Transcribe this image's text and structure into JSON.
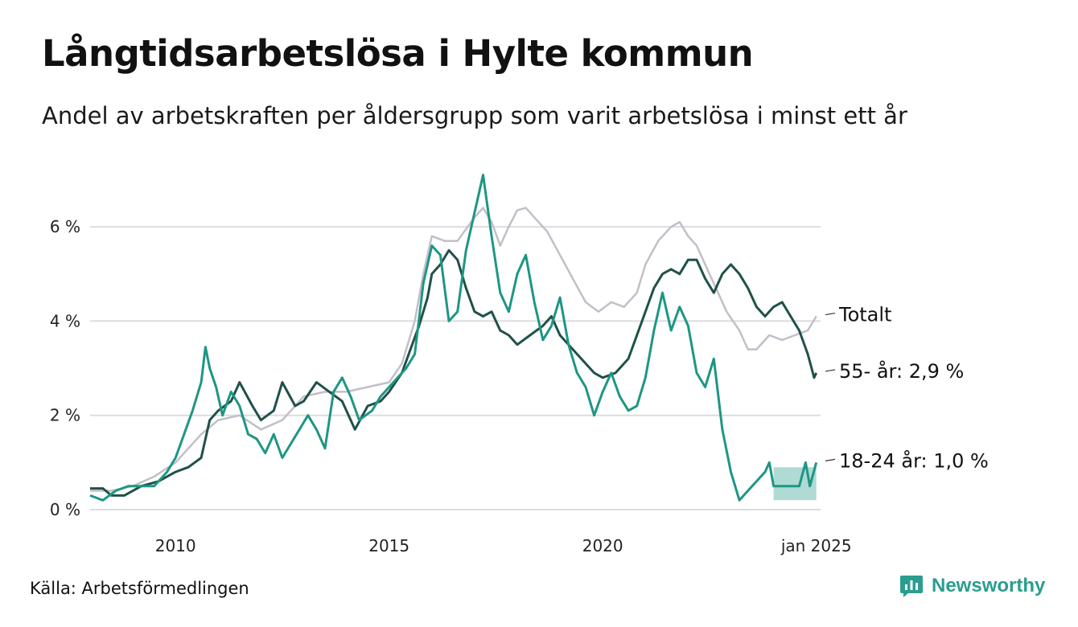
{
  "header": {
    "title": "Långtidsarbetslösa i Hylte kommun",
    "subtitle": "Andel av arbetskraften per åldersgrupp som varit arbetslösa i minst ett år"
  },
  "footer": {
    "source": "Källa: Arbetsförmedlingen",
    "brand": "Newsworthy",
    "brand_icon": "newsworthy-logo-icon"
  },
  "chart_data": {
    "type": "line",
    "title": "",
    "xlabel": "",
    "ylabel": "",
    "xlim": [
      2008.0,
      2025.1
    ],
    "ylim": [
      0,
      7.4
    ],
    "grid": true,
    "legend": "none (direct labels at line ends)",
    "y_ticks": [
      {
        "value": 0,
        "label": "0 %"
      },
      {
        "value": 2,
        "label": "2 %"
      },
      {
        "value": 4,
        "label": "4 %"
      },
      {
        "value": 6,
        "label": "6 %"
      }
    ],
    "x_ticks": [
      {
        "value": 2010,
        "label": "2010"
      },
      {
        "value": 2015,
        "label": "2015"
      },
      {
        "value": 2020,
        "label": "2020"
      },
      {
        "value": 2025,
        "label": "jan 2025"
      }
    ],
    "series": [
      {
        "name": "Totalt",
        "end_label": "Totalt",
        "color": "#c2bfc8",
        "points": [
          [
            2008.0,
            0.4
          ],
          [
            2008.5,
            0.4
          ],
          [
            2009.0,
            0.5
          ],
          [
            2009.5,
            0.7
          ],
          [
            2010.0,
            1.0
          ],
          [
            2010.3,
            1.3
          ],
          [
            2010.6,
            1.6
          ],
          [
            2011.0,
            1.9
          ],
          [
            2011.5,
            2.0
          ],
          [
            2012.0,
            1.7
          ],
          [
            2012.5,
            1.9
          ],
          [
            2013.0,
            2.4
          ],
          [
            2013.5,
            2.5
          ],
          [
            2014.0,
            2.5
          ],
          [
            2014.5,
            2.6
          ],
          [
            2015.0,
            2.7
          ],
          [
            2015.3,
            3.1
          ],
          [
            2015.6,
            4.0
          ],
          [
            2015.8,
            5.0
          ],
          [
            2016.0,
            5.8
          ],
          [
            2016.3,
            5.7
          ],
          [
            2016.6,
            5.7
          ],
          [
            2017.0,
            6.2
          ],
          [
            2017.2,
            6.4
          ],
          [
            2017.4,
            6.1
          ],
          [
            2017.6,
            5.6
          ],
          [
            2017.8,
            6.0
          ],
          [
            2018.0,
            6.35
          ],
          [
            2018.2,
            6.4
          ],
          [
            2018.4,
            6.2
          ],
          [
            2018.7,
            5.9
          ],
          [
            2019.0,
            5.4
          ],
          [
            2019.3,
            4.9
          ],
          [
            2019.6,
            4.4
          ],
          [
            2019.9,
            4.2
          ],
          [
            2020.2,
            4.4
          ],
          [
            2020.5,
            4.3
          ],
          [
            2020.8,
            4.6
          ],
          [
            2021.0,
            5.2
          ],
          [
            2021.3,
            5.7
          ],
          [
            2021.6,
            6.0
          ],
          [
            2021.8,
            6.1
          ],
          [
            2022.0,
            5.8
          ],
          [
            2022.2,
            5.6
          ],
          [
            2022.5,
            5.0
          ],
          [
            2022.7,
            4.6
          ],
          [
            2022.9,
            4.2
          ],
          [
            2023.2,
            3.8
          ],
          [
            2023.4,
            3.4
          ],
          [
            2023.6,
            3.4
          ],
          [
            2023.9,
            3.7
          ],
          [
            2024.2,
            3.6
          ],
          [
            2024.5,
            3.7
          ],
          [
            2024.8,
            3.8
          ],
          [
            2025.0,
            4.1
          ]
        ]
      },
      {
        "name": "55- år",
        "end_label": "55- år: 2,9 %",
        "color": "#1f5149",
        "points": [
          [
            2008.0,
            0.45
          ],
          [
            2008.3,
            0.45
          ],
          [
            2008.5,
            0.3
          ],
          [
            2008.8,
            0.3
          ],
          [
            2009.2,
            0.5
          ],
          [
            2009.6,
            0.6
          ],
          [
            2010.0,
            0.8
          ],
          [
            2010.3,
            0.9
          ],
          [
            2010.6,
            1.1
          ],
          [
            2010.8,
            1.9
          ],
          [
            2011.0,
            2.1
          ],
          [
            2011.3,
            2.3
          ],
          [
            2011.5,
            2.7
          ],
          [
            2011.8,
            2.2
          ],
          [
            2012.0,
            1.9
          ],
          [
            2012.3,
            2.1
          ],
          [
            2012.5,
            2.7
          ],
          [
            2012.8,
            2.2
          ],
          [
            2013.0,
            2.3
          ],
          [
            2013.3,
            2.7
          ],
          [
            2013.6,
            2.5
          ],
          [
            2013.9,
            2.3
          ],
          [
            2014.2,
            1.7
          ],
          [
            2014.5,
            2.2
          ],
          [
            2014.8,
            2.3
          ],
          [
            2015.0,
            2.5
          ],
          [
            2015.3,
            2.9
          ],
          [
            2015.5,
            3.4
          ],
          [
            2015.7,
            3.9
          ],
          [
            2015.9,
            4.5
          ],
          [
            2016.0,
            5.0
          ],
          [
            2016.2,
            5.2
          ],
          [
            2016.4,
            5.5
          ],
          [
            2016.6,
            5.3
          ],
          [
            2016.8,
            4.7
          ],
          [
            2017.0,
            4.2
          ],
          [
            2017.2,
            4.1
          ],
          [
            2017.4,
            4.2
          ],
          [
            2017.6,
            3.8
          ],
          [
            2017.8,
            3.7
          ],
          [
            2018.0,
            3.5
          ],
          [
            2018.3,
            3.7
          ],
          [
            2018.6,
            3.9
          ],
          [
            2018.8,
            4.1
          ],
          [
            2019.0,
            3.7
          ],
          [
            2019.3,
            3.4
          ],
          [
            2019.6,
            3.1
          ],
          [
            2019.8,
            2.9
          ],
          [
            2020.0,
            2.8
          ],
          [
            2020.3,
            2.9
          ],
          [
            2020.6,
            3.2
          ],
          [
            2020.8,
            3.7
          ],
          [
            2021.0,
            4.2
          ],
          [
            2021.2,
            4.7
          ],
          [
            2021.4,
            5.0
          ],
          [
            2021.6,
            5.1
          ],
          [
            2021.8,
            5.0
          ],
          [
            2022.0,
            5.3
          ],
          [
            2022.2,
            5.3
          ],
          [
            2022.4,
            4.9
          ],
          [
            2022.6,
            4.6
          ],
          [
            2022.8,
            5.0
          ],
          [
            2023.0,
            5.2
          ],
          [
            2023.2,
            5.0
          ],
          [
            2023.4,
            4.7
          ],
          [
            2023.6,
            4.3
          ],
          [
            2023.8,
            4.1
          ],
          [
            2024.0,
            4.3
          ],
          [
            2024.2,
            4.4
          ],
          [
            2024.4,
            4.1
          ],
          [
            2024.6,
            3.8
          ],
          [
            2024.8,
            3.3
          ],
          [
            2024.95,
            2.8
          ],
          [
            2025.0,
            2.9
          ]
        ]
      },
      {
        "name": "18-24 år",
        "end_label": "18-24 år: 1,0 %",
        "color": "#1e9684",
        "band": {
          "from": 2024.0,
          "to": 2025.0,
          "lower": 0.2,
          "upper": 0.9,
          "color": "#1e9684",
          "opacity": 0.35
        },
        "points": [
          [
            2008.0,
            0.3
          ],
          [
            2008.3,
            0.2
          ],
          [
            2008.6,
            0.4
          ],
          [
            2008.9,
            0.5
          ],
          [
            2009.2,
            0.5
          ],
          [
            2009.5,
            0.5
          ],
          [
            2009.8,
            0.8
          ],
          [
            2010.0,
            1.1
          ],
          [
            2010.2,
            1.6
          ],
          [
            2010.4,
            2.1
          ],
          [
            2010.6,
            2.7
          ],
          [
            2010.7,
            3.45
          ],
          [
            2010.8,
            3.0
          ],
          [
            2010.95,
            2.6
          ],
          [
            2011.1,
            2.0
          ],
          [
            2011.3,
            2.5
          ],
          [
            2011.5,
            2.2
          ],
          [
            2011.7,
            1.6
          ],
          [
            2011.9,
            1.5
          ],
          [
            2012.1,
            1.2
          ],
          [
            2012.3,
            1.6
          ],
          [
            2012.5,
            1.1
          ],
          [
            2012.7,
            1.4
          ],
          [
            2012.9,
            1.7
          ],
          [
            2013.1,
            2.0
          ],
          [
            2013.3,
            1.7
          ],
          [
            2013.5,
            1.3
          ],
          [
            2013.7,
            2.5
          ],
          [
            2013.9,
            2.8
          ],
          [
            2014.1,
            2.4
          ],
          [
            2014.3,
            1.9
          ],
          [
            2014.6,
            2.1
          ],
          [
            2014.8,
            2.4
          ],
          [
            2015.0,
            2.6
          ],
          [
            2015.2,
            2.8
          ],
          [
            2015.4,
            3.0
          ],
          [
            2015.6,
            3.3
          ],
          [
            2015.8,
            4.8
          ],
          [
            2016.0,
            5.6
          ],
          [
            2016.2,
            5.4
          ],
          [
            2016.4,
            4.0
          ],
          [
            2016.6,
            4.2
          ],
          [
            2016.8,
            5.5
          ],
          [
            2017.0,
            6.3
          ],
          [
            2017.2,
            7.1
          ],
          [
            2017.4,
            5.8
          ],
          [
            2017.6,
            4.6
          ],
          [
            2017.8,
            4.2
          ],
          [
            2018.0,
            5.0
          ],
          [
            2018.2,
            5.4
          ],
          [
            2018.4,
            4.4
          ],
          [
            2018.6,
            3.6
          ],
          [
            2018.8,
            3.9
          ],
          [
            2019.0,
            4.5
          ],
          [
            2019.2,
            3.5
          ],
          [
            2019.4,
            2.9
          ],
          [
            2019.6,
            2.6
          ],
          [
            2019.8,
            2.0
          ],
          [
            2020.0,
            2.5
          ],
          [
            2020.2,
            2.9
          ],
          [
            2020.4,
            2.4
          ],
          [
            2020.6,
            2.1
          ],
          [
            2020.8,
            2.2
          ],
          [
            2021.0,
            2.8
          ],
          [
            2021.2,
            3.8
          ],
          [
            2021.4,
            4.6
          ],
          [
            2021.6,
            3.8
          ],
          [
            2021.8,
            4.3
          ],
          [
            2022.0,
            3.9
          ],
          [
            2022.2,
            2.9
          ],
          [
            2022.4,
            2.6
          ],
          [
            2022.6,
            3.2
          ],
          [
            2022.8,
            1.7
          ],
          [
            2023.0,
            0.8
          ],
          [
            2023.2,
            0.2
          ],
          [
            2023.4,
            0.4
          ],
          [
            2023.6,
            0.6
          ],
          [
            2023.8,
            0.8
          ],
          [
            2023.9,
            1.0
          ],
          [
            2024.0,
            0.5
          ],
          [
            2024.3,
            0.5
          ],
          [
            2024.6,
            0.5
          ],
          [
            2024.75,
            1.0
          ],
          [
            2024.85,
            0.5
          ],
          [
            2025.0,
            1.0
          ]
        ]
      }
    ]
  }
}
